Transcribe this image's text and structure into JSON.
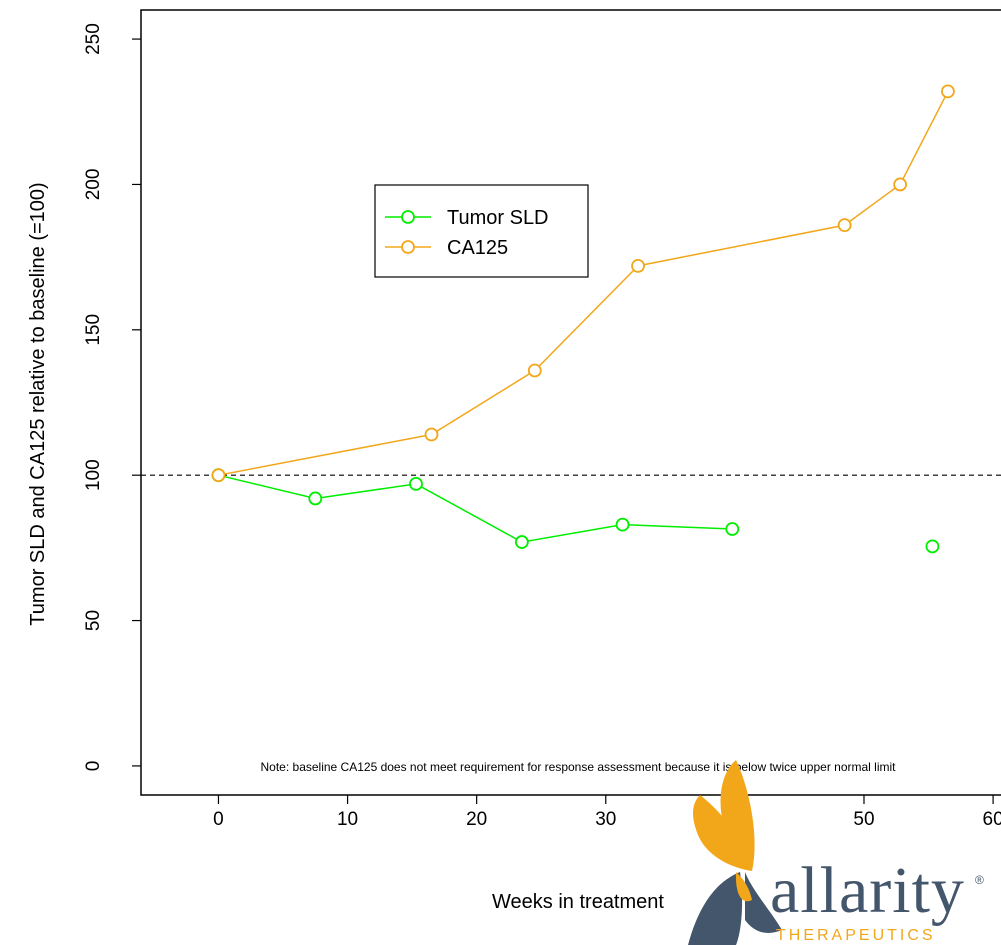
{
  "chart_data": {
    "type": "line",
    "xlabel": "Weeks in treatment",
    "ylabel": "Tumor SLD and CA125 relative to baseline (=100)",
    "xlim": [
      -6,
      61
    ],
    "ylim": [
      -10,
      260
    ],
    "x_ticks": [
      0,
      10,
      20,
      30,
      40,
      50,
      60
    ],
    "y_ticks": [
      0,
      50,
      100,
      150,
      200,
      250
    ],
    "x_tick_labels": [
      "0",
      "10",
      "20",
      "30",
      "40",
      "50",
      "60"
    ],
    "y_tick_labels": [
      "0",
      "50",
      "100",
      "150",
      "200",
      "250"
    ],
    "reference_line": {
      "y": 100,
      "style": "dashed"
    },
    "legend": {
      "position": "upper-center",
      "entries": [
        "Tumor SLD",
        "CA125"
      ]
    },
    "series": [
      {
        "name": "Tumor SLD",
        "color": "#00ee00",
        "segments": [
          [
            {
              "x": 0,
              "y": 100
            },
            {
              "x": 7.5,
              "y": 92
            },
            {
              "x": 15.3,
              "y": 97
            },
            {
              "x": 23.5,
              "y": 77
            },
            {
              "x": 31.3,
              "y": 83
            },
            {
              "x": 39.8,
              "y": 81.5
            }
          ],
          [
            {
              "x": 55.3,
              "y": 75.5
            }
          ]
        ]
      },
      {
        "name": "CA125",
        "color": "#f2a71b",
        "segments": [
          [
            {
              "x": 0,
              "y": 100
            },
            {
              "x": 16.5,
              "y": 114
            },
            {
              "x": 24.5,
              "y": 136
            },
            {
              "x": 32.5,
              "y": 172
            },
            {
              "x": 48.5,
              "y": 186
            },
            {
              "x": 52.8,
              "y": 200
            },
            {
              "x": 56.5,
              "y": 232
            }
          ]
        ]
      }
    ],
    "annotation": "Note: baseline CA125 does not meet requirement for response assessment because it is below twice upper normal limit"
  },
  "logo": {
    "name": "allarity",
    "tagline": "THERAPEUTICS",
    "registered": "®",
    "colors": {
      "text": "#44566b",
      "accent": "#f2a71b",
      "dark": "#44566b"
    }
  }
}
